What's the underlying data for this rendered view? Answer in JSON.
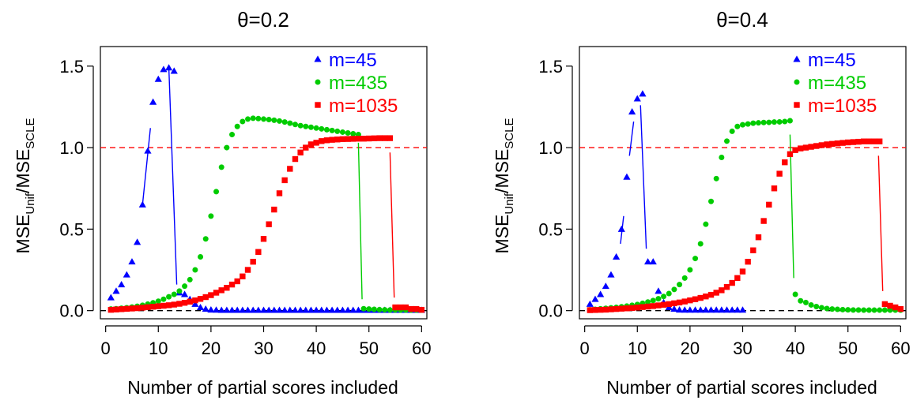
{
  "chart_data": [
    {
      "type": "scatter",
      "title": "θ=0.2",
      "xlabel": "Number of partial scores included",
      "ylabel": {
        "main1": "MSE",
        "sub1": "Unif",
        "sep": "/",
        "main2": "MSE",
        "sub2": "SCLE"
      },
      "xlim": [
        -1,
        61
      ],
      "ylim": [
        -0.05,
        1.62
      ],
      "x_ticks": [
        0,
        10,
        20,
        30,
        40,
        50,
        60
      ],
      "x_tick_labels": [
        "0",
        "10",
        "20",
        "30",
        "40",
        "50",
        "60"
      ],
      "y_ticks": [
        0.0,
        0.5,
        1.0,
        1.5
      ],
      "y_tick_labels": [
        "0.0",
        "0.5",
        "1.0",
        "1.5"
      ],
      "reference_lines": [
        {
          "y": 1.0,
          "color": "#ff0000",
          "style": "dashed"
        },
        {
          "y": 0.0,
          "color": "#000000",
          "style": "dashed"
        }
      ],
      "legend_position": "top-right",
      "series": [
        {
          "name": "m=45",
          "color": "#0000ff",
          "marker": "triangle",
          "x": [
            1,
            2,
            3,
            4,
            5,
            6,
            7,
            8,
            9,
            10,
            11,
            12,
            13,
            14,
            15,
            16,
            17,
            18,
            19,
            20,
            21,
            22,
            23,
            24,
            25,
            26,
            27,
            28,
            29,
            30,
            31,
            32,
            33,
            34,
            35,
            36,
            37,
            38,
            39,
            40,
            41,
            42,
            43,
            44,
            45,
            46,
            47,
            48,
            49,
            50,
            51,
            52,
            53,
            54,
            55,
            56,
            57,
            58,
            59,
            60
          ],
          "y": [
            0.08,
            0.12,
            0.16,
            0.22,
            0.3,
            0.42,
            0.65,
            0.98,
            1.28,
            1.42,
            1.48,
            1.49,
            1.47,
            0.11,
            0.1,
            0.07,
            0.04,
            0.02,
            0.01,
            0.005,
            0.004,
            0.003,
            0.003,
            0.003,
            0.003,
            0.003,
            0.003,
            0.003,
            0.003,
            0.003,
            0.003,
            0.003,
            0.003,
            0.003,
            0.003,
            0.003,
            0.003,
            0.003,
            0.003,
            0.003,
            0.003,
            0.003,
            0.003,
            0.003,
            0.003,
            0.003,
            0.003,
            0.003,
            0.003,
            0.003,
            0.003,
            0.003,
            0.003,
            0.003,
            0.003,
            0.003,
            0.003,
            0.003,
            0.003,
            0.003
          ],
          "connectors": [
            {
              "x": [
                7,
                8.5
              ],
              "y": [
                0.65,
                1.12
              ]
            },
            {
              "x": [
                12,
                13.5
              ],
              "y": [
                1.49,
                0.16
              ]
            }
          ]
        },
        {
          "name": "m=435",
          "color": "#00cc00",
          "marker": "circle",
          "x": [
            1,
            2,
            3,
            4,
            5,
            6,
            7,
            8,
            9,
            10,
            11,
            12,
            13,
            14,
            15,
            16,
            17,
            18,
            19,
            20,
            21,
            22,
            23,
            24,
            25,
            26,
            27,
            28,
            29,
            30,
            31,
            32,
            33,
            34,
            35,
            36,
            37,
            38,
            39,
            40,
            41,
            42,
            43,
            44,
            45,
            46,
            47,
            48,
            49,
            50,
            51,
            52,
            53,
            54,
            55,
            56,
            57,
            58,
            59,
            60
          ],
          "y": [
            0.01,
            0.012,
            0.015,
            0.018,
            0.022,
            0.027,
            0.033,
            0.04,
            0.048,
            0.058,
            0.07,
            0.085,
            0.1,
            0.12,
            0.15,
            0.19,
            0.25,
            0.33,
            0.44,
            0.58,
            0.73,
            0.88,
            1.0,
            1.08,
            1.13,
            1.16,
            1.175,
            1.18,
            1.178,
            1.175,
            1.172,
            1.168,
            1.163,
            1.157,
            1.15,
            1.142,
            1.135,
            1.13,
            1.125,
            1.12,
            1.115,
            1.11,
            1.105,
            1.1,
            1.095,
            1.09,
            1.085,
            1.08,
            0.012,
            0.01,
            0.008,
            0.006,
            0.005,
            0.004,
            0.004,
            0.003,
            0.003,
            0.003,
            0.003,
            0.003
          ],
          "connectors": [
            {
              "x": [
                48,
                48.7
              ],
              "y": [
                1.03,
                0.07
              ]
            }
          ]
        },
        {
          "name": "m=1035",
          "color": "#ff0000",
          "marker": "square",
          "x": [
            1,
            2,
            3,
            4,
            5,
            6,
            7,
            8,
            9,
            10,
            11,
            12,
            13,
            14,
            15,
            16,
            17,
            18,
            19,
            20,
            21,
            22,
            23,
            24,
            25,
            26,
            27,
            28,
            29,
            30,
            31,
            32,
            33,
            34,
            35,
            36,
            37,
            38,
            39,
            40,
            41,
            42,
            43,
            44,
            45,
            46,
            47,
            48,
            49,
            50,
            51,
            52,
            53,
            54,
            55,
            56,
            57,
            58,
            59,
            60
          ],
          "y": [
            0.005,
            0.007,
            0.009,
            0.011,
            0.013,
            0.015,
            0.018,
            0.021,
            0.024,
            0.027,
            0.03,
            0.033,
            0.037,
            0.042,
            0.048,
            0.055,
            0.063,
            0.072,
            0.083,
            0.095,
            0.11,
            0.125,
            0.14,
            0.16,
            0.18,
            0.21,
            0.25,
            0.3,
            0.36,
            0.44,
            0.53,
            0.62,
            0.72,
            0.8,
            0.87,
            0.93,
            0.97,
            1.0,
            1.02,
            1.03,
            1.04,
            1.045,
            1.048,
            1.05,
            1.052,
            1.053,
            1.054,
            1.055,
            1.055,
            1.056,
            1.057,
            1.058,
            1.058,
            1.058,
            0.02,
            0.02,
            0.02,
            0.01,
            0.01,
            0.005
          ],
          "connectors": [
            {
              "x": [
                54,
                54.8
              ],
              "y": [
                0.97,
                0.08
              ]
            }
          ]
        }
      ]
    },
    {
      "type": "scatter",
      "title": "θ=0.4",
      "xlabel": "Number of partial scores included",
      "ylabel": {
        "main1": "MSE",
        "sub1": "Unif",
        "sep": "/",
        "main2": "MSE",
        "sub2": "SCLE"
      },
      "xlim": [
        -1,
        61
      ],
      "ylim": [
        -0.05,
        1.62
      ],
      "x_ticks": [
        0,
        10,
        20,
        30,
        40,
        50,
        60
      ],
      "x_tick_labels": [
        "0",
        "10",
        "20",
        "30",
        "40",
        "50",
        "60"
      ],
      "y_ticks": [
        0.0,
        0.5,
        1.0,
        1.5
      ],
      "y_tick_labels": [
        "0.0",
        "0.5",
        "1.0",
        "1.5"
      ],
      "reference_lines": [
        {
          "y": 1.0,
          "color": "#ff0000",
          "style": "dashed"
        },
        {
          "y": 0.0,
          "color": "#000000",
          "style": "dashed"
        }
      ],
      "legend_position": "top-right",
      "series": [
        {
          "name": "m=45",
          "color": "#0000ff",
          "marker": "triangle",
          "x": [
            1,
            2,
            3,
            4,
            5,
            6,
            7,
            8,
            9,
            10,
            11,
            12,
            13,
            14,
            15,
            16,
            17,
            18,
            19,
            20,
            21,
            22,
            23,
            24,
            25,
            26,
            27,
            28,
            29,
            30
          ],
          "y": [
            0.04,
            0.07,
            0.1,
            0.15,
            0.22,
            0.33,
            0.5,
            0.82,
            1.22,
            1.3,
            1.33,
            0.3,
            0.3,
            0.12,
            0.05,
            0.02,
            0.01,
            0.005,
            0.004,
            0.004,
            0.004,
            0.004,
            0.004,
            0.004,
            0.004,
            0.004,
            0.004,
            0.004,
            0.004,
            0.004
          ],
          "connectors": [
            {
              "x": [
                6.8,
                7.4
              ],
              "y": [
                0.41,
                0.58
              ]
            },
            {
              "x": [
                8.5,
                9.3
              ],
              "y": [
                0.95,
                1.16
              ]
            },
            {
              "x": [
                10.6,
                11.7
              ],
              "y": [
                1.26,
                0.38
              ]
            }
          ]
        },
        {
          "name": "m=435",
          "color": "#00cc00",
          "marker": "circle",
          "x": [
            1,
            2,
            3,
            4,
            5,
            6,
            7,
            8,
            9,
            10,
            11,
            12,
            13,
            14,
            15,
            16,
            17,
            18,
            19,
            20,
            21,
            22,
            23,
            24,
            25,
            26,
            27,
            28,
            29,
            30,
            31,
            32,
            33,
            34,
            35,
            36,
            37,
            38,
            39,
            40,
            41,
            42,
            43,
            44,
            45,
            46,
            47,
            48,
            49,
            50,
            51,
            52,
            53,
            54,
            55,
            56,
            57,
            58,
            59,
            60
          ],
          "y": [
            0.005,
            0.008,
            0.011,
            0.014,
            0.017,
            0.02,
            0.024,
            0.028,
            0.033,
            0.038,
            0.045,
            0.053,
            0.062,
            0.073,
            0.087,
            0.105,
            0.13,
            0.16,
            0.2,
            0.25,
            0.32,
            0.41,
            0.53,
            0.67,
            0.81,
            0.94,
            1.04,
            1.1,
            1.13,
            1.14,
            1.145,
            1.15,
            1.152,
            1.154,
            1.155,
            1.157,
            1.158,
            1.16,
            1.165,
            0.1,
            0.06,
            0.05,
            0.035,
            0.025,
            0.018,
            0.013,
            0.01,
            0.008,
            0.006,
            0.005,
            0.004,
            0.004,
            0.003,
            0.003,
            0.003,
            0.003,
            0.003,
            0.003,
            0.003,
            0.003
          ],
          "connectors": [
            {
              "x": [
                39,
                39.7
              ],
              "y": [
                1.08,
                0.2
              ]
            }
          ]
        },
        {
          "name": "m=1035",
          "color": "#ff0000",
          "marker": "square",
          "x": [
            1,
            2,
            3,
            4,
            5,
            6,
            7,
            8,
            9,
            10,
            11,
            12,
            13,
            14,
            15,
            16,
            17,
            18,
            19,
            20,
            21,
            22,
            23,
            24,
            25,
            26,
            27,
            28,
            29,
            30,
            31,
            32,
            33,
            34,
            35,
            36,
            37,
            38,
            39,
            40,
            41,
            42,
            43,
            44,
            45,
            46,
            47,
            48,
            49,
            50,
            51,
            52,
            53,
            54,
            55,
            56,
            57,
            58,
            59,
            60
          ],
          "y": [
            0.003,
            0.004,
            0.005,
            0.006,
            0.008,
            0.01,
            0.012,
            0.014,
            0.016,
            0.019,
            0.022,
            0.025,
            0.028,
            0.032,
            0.036,
            0.04,
            0.045,
            0.05,
            0.056,
            0.063,
            0.07,
            0.078,
            0.087,
            0.097,
            0.11,
            0.125,
            0.145,
            0.17,
            0.2,
            0.24,
            0.3,
            0.37,
            0.45,
            0.55,
            0.65,
            0.75,
            0.84,
            0.91,
            0.96,
            0.985,
            0.995,
            1.0,
            1.005,
            1.01,
            1.015,
            1.02,
            1.023,
            1.026,
            1.029,
            1.032,
            1.034,
            1.036,
            1.038,
            1.038,
            1.038,
            1.038,
            0.04,
            0.03,
            0.02,
            0.01
          ],
          "connectors": [
            {
              "x": [
                55.8,
                56.6
              ],
              "y": [
                0.95,
                0.12
              ]
            }
          ]
        }
      ]
    }
  ]
}
